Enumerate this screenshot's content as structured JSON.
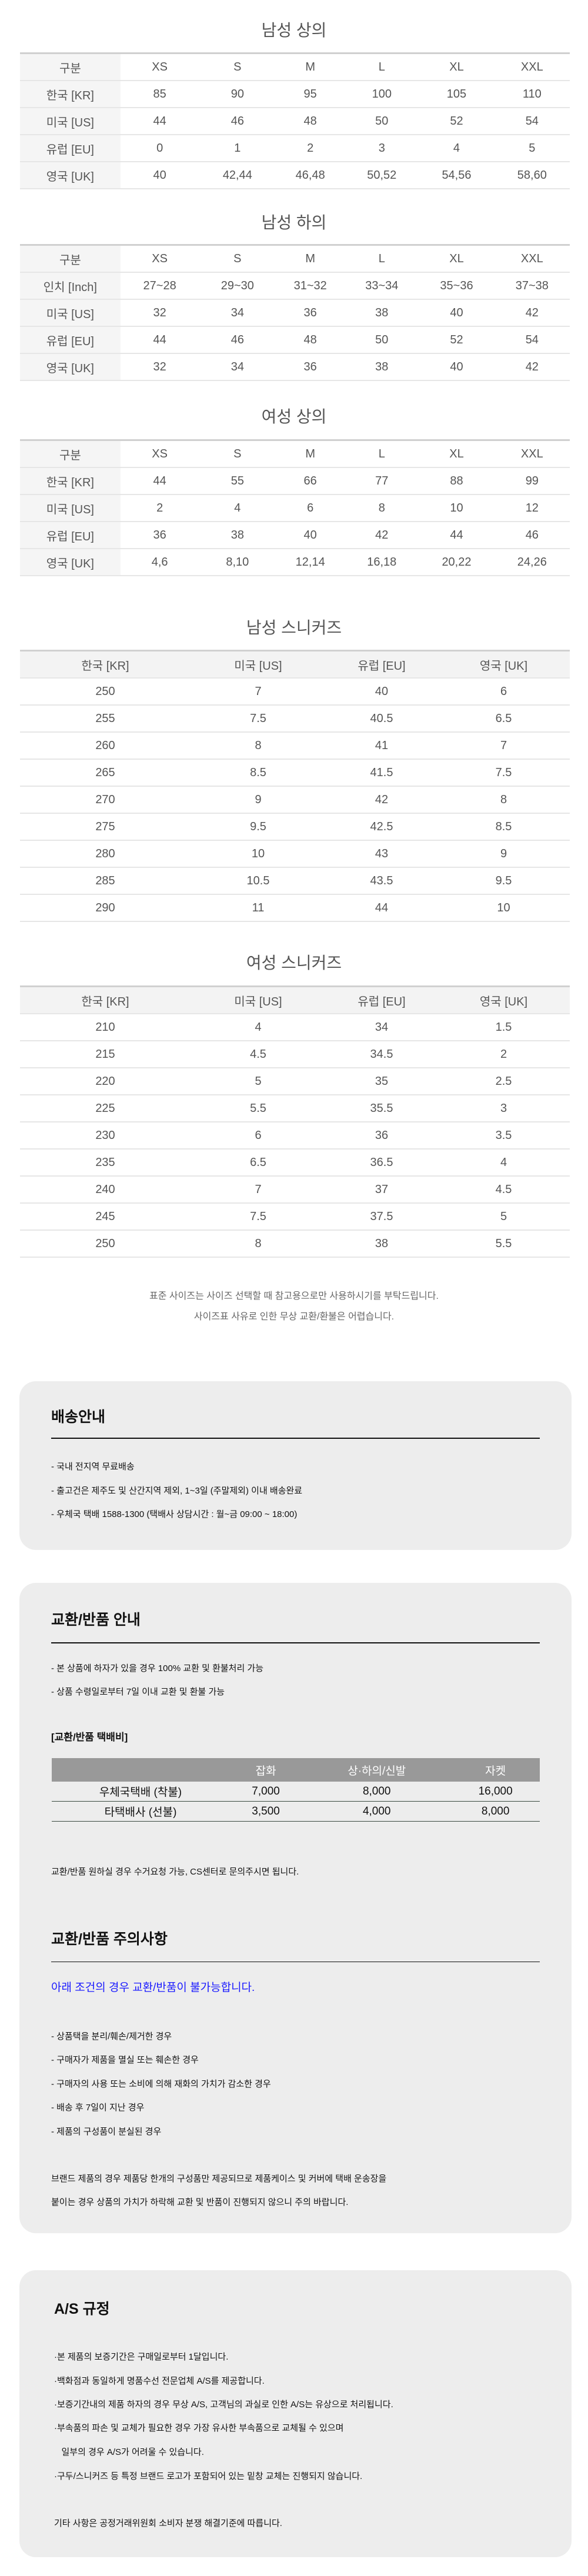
{
  "mens_tops": {
    "title": "남성 상의",
    "header": [
      "구분",
      "XS",
      "S",
      "M",
      "L",
      "XL",
      "XXL"
    ],
    "rows": [
      [
        "한국 [KR]",
        "85",
        "90",
        "95",
        "100",
        "105",
        "110"
      ],
      [
        "미국 [US]",
        "44",
        "46",
        "48",
        "50",
        "52",
        "54"
      ],
      [
        "유럽 [EU]",
        "0",
        "1",
        "2",
        "3",
        "4",
        "5"
      ],
      [
        "영국 [UK]",
        "40",
        "42,44",
        "46,48",
        "50,52",
        "54,56",
        "58,60"
      ]
    ]
  },
  "mens_bottoms": {
    "title": "남성 하의",
    "header": [
      "구분",
      "XS",
      "S",
      "M",
      "L",
      "XL",
      "XXL"
    ],
    "rows": [
      [
        "인치 [Inch]",
        "27~28",
        "29~30",
        "31~32",
        "33~34",
        "35~36",
        "37~38"
      ],
      [
        "미국 [US]",
        "32",
        "34",
        "36",
        "38",
        "40",
        "42"
      ],
      [
        "유럽 [EU]",
        "44",
        "46",
        "48",
        "50",
        "52",
        "54"
      ],
      [
        "영국 [UK]",
        "32",
        "34",
        "36",
        "38",
        "40",
        "42"
      ]
    ]
  },
  "womens_tops": {
    "title": "여성 상의",
    "header": [
      "구분",
      "XS",
      "S",
      "M",
      "L",
      "XL",
      "XXL"
    ],
    "rows": [
      [
        "한국 [KR]",
        "44",
        "55",
        "66",
        "77",
        "88",
        "99"
      ],
      [
        "미국 [US]",
        "2",
        "4",
        "6",
        "8",
        "10",
        "12"
      ],
      [
        "유럽 [EU]",
        "36",
        "38",
        "40",
        "42",
        "44",
        "46"
      ],
      [
        "영국 [UK]",
        "4,6",
        "8,10",
        "12,14",
        "16,18",
        "20,22",
        "24,26"
      ]
    ]
  },
  "mens_sneakers": {
    "title": "남성 스니커즈",
    "header": [
      "한국 [KR]",
      "미국 [US]",
      "유럽 [EU]",
      "영국 [UK]"
    ],
    "rows": [
      [
        "250",
        "7",
        "40",
        "6"
      ],
      [
        "255",
        "7.5",
        "40.5",
        "6.5"
      ],
      [
        "260",
        "8",
        "41",
        "7"
      ],
      [
        "265",
        "8.5",
        "41.5",
        "7.5"
      ],
      [
        "270",
        "9",
        "42",
        "8"
      ],
      [
        "275",
        "9.5",
        "42.5",
        "8.5"
      ],
      [
        "280",
        "10",
        "43",
        "9"
      ],
      [
        "285",
        "10.5",
        "43.5",
        "9.5"
      ],
      [
        "290",
        "11",
        "44",
        "10"
      ]
    ]
  },
  "womens_sneakers": {
    "title": "여성 스니커즈",
    "header": [
      "한국 [KR]",
      "미국 [US]",
      "유럽 [EU]",
      "영국 [UK]"
    ],
    "rows": [
      [
        "210",
        "4",
        "34",
        "1.5"
      ],
      [
        "215",
        "4.5",
        "34.5",
        "2"
      ],
      [
        "220",
        "5",
        "35",
        "2.5"
      ],
      [
        "225",
        "5.5",
        "35.5",
        "3"
      ],
      [
        "230",
        "6",
        "36",
        "3.5"
      ],
      [
        "235",
        "6.5",
        "36.5",
        "4"
      ],
      [
        "240",
        "7",
        "37",
        "4.5"
      ],
      [
        "245",
        "7.5",
        "37.5",
        "5"
      ],
      [
        "250",
        "8",
        "38",
        "5.5"
      ]
    ]
  },
  "size_notes": [
    "표준 사이즈는 사이즈 선택할 때 참고용으로만 사용하시기를 부탁드립니다.",
    "사이즈표 사유로 인한 무상 교환/환불은 어렵습니다."
  ],
  "shipping": {
    "title": "배송안내",
    "items": [
      "- 국내 전지역 무료배송",
      "- 출고건은 제주도 및 산간지역 제외,  1~3일 (주말제외) 이내 배송완료",
      "- 우체국 택배 1588-1300 (택배사 상담시간 : 월~금 09:00 ~ 18:00)"
    ]
  },
  "exchange": {
    "title": "교환/반품 안내",
    "items": [
      "- 본 상품에 하자가 있을 경우 100% 교환 및 환불처리 가능",
      "- 상품 수령일로부터 7일 이내 교환 및 환불 가능"
    ],
    "fee_title": "[교환/반품 택배비]",
    "fee_header": [
      "",
      "잡화",
      "상·하의/신발",
      "자켓"
    ],
    "fee_rows": [
      [
        "우체국택배 (착불)",
        "7,000",
        "8,000",
        "16,000"
      ],
      [
        "타택배사 (선불)",
        "3,500",
        "4,000",
        "8,000"
      ]
    ],
    "fee_note": "교환/반품 원하실 경우 수거요청 가능, CS센터로 문의주시면 됩니다."
  },
  "caution": {
    "title": "교환/반품 주의사항",
    "highlight": "아래 조건의 경우 교환/반품이 불가능합니다.",
    "highlight_color": "#1a1aff",
    "items": [
      "- 상품택을 분리/훼손/제거한 경우",
      "- 구매자가 제품을 멸실 또는 훼손한 경우",
      "- 구매자의 사용 또는 소비에 의해 재화의 가치가 감소한 경우",
      "- 배송 후 7일이 지난 경우",
      "- 제품의 구성품이 분실된 경우"
    ],
    "paragraph": [
      "브랜드 제품의 경우 제품당 한개의 구성품만 제공되므로 제품케이스 및 커버에 택배 운송장을",
      "붙이는 경우 상품의 가치가 하락해 교환 및 반품이 진행되지 않으니 주의 바랍니다."
    ]
  },
  "as": {
    "title": "A/S 규정",
    "items": [
      "·본 제품의 보증기간은 구매일로부터 1달입니다.",
      "·백화점과 동일하게 명품수선 전문업체 A/S를 제공합니다.",
      "·보증기간내의 제품 하자의 경우 무상 A/S, 고객님의 과실로 인한 A/S는 유상으로 처리됩니다.",
      "·부속품의 파손 및 교체가 필요한 경우 가장 유사한 부속품으로 교체될 수 있으며",
      "   일부의 경우 A/S가 어려울 수 있습니다.",
      "·구두/스니커즈 등 특정 브랜드 로고가 포함되어 있는 밑창 교체는 진행되지 않습니다."
    ],
    "footer": "기타 사항은 공정거래위원회 소비자 분쟁 해결기준에 따릅니다."
  }
}
